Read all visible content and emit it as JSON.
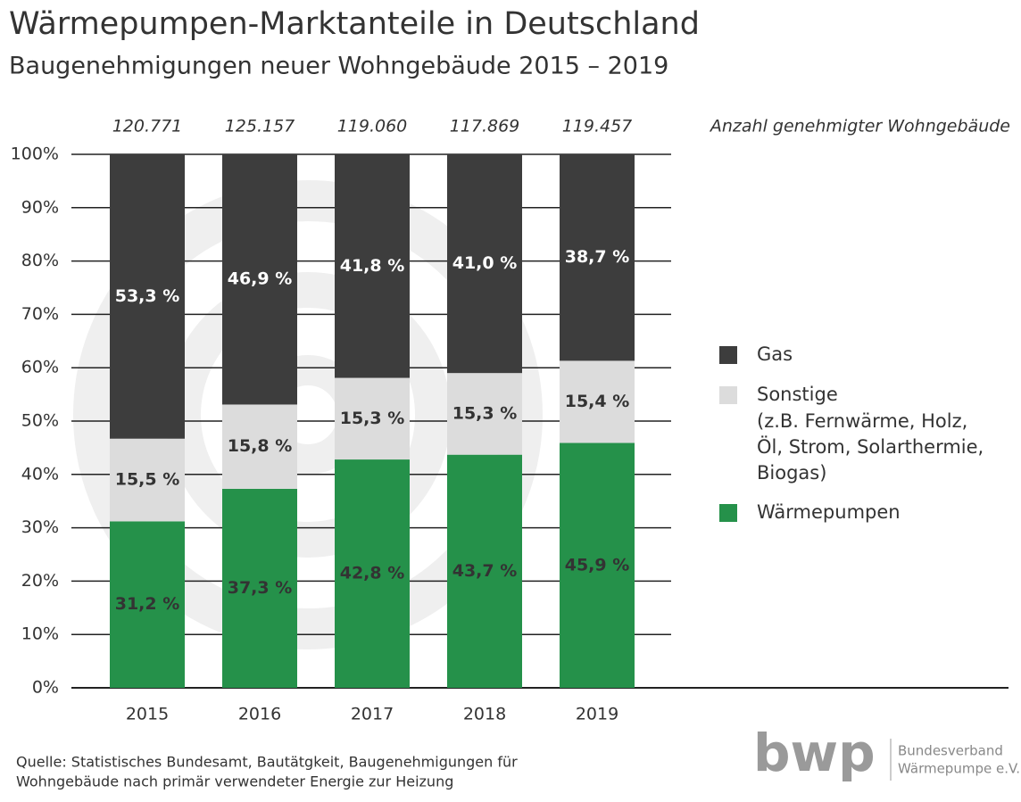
{
  "chart_data": {
    "type": "stacked-bar",
    "title": "Wärmepumpen-Marktanteile in Deutschland",
    "subtitle": "Baugenehmigungen neuer Wohngebäude 2015 – 2019",
    "categories": [
      "2015",
      "2016",
      "2017",
      "2018",
      "2019"
    ],
    "series": [
      {
        "name": "Wärmepumpen",
        "color": "#25914a",
        "label_color": "#333333",
        "values": [
          31.2,
          37.3,
          42.8,
          43.7,
          45.9
        ],
        "value_labels": [
          "31,2 %",
          "37,3 %",
          "42,8 %",
          "43,7 %",
          "45,9 %"
        ]
      },
      {
        "name": "Sonstige",
        "color": "#dcdcdc",
        "label_color": "#333333",
        "description": [
          "(z.B. Fernwärme, Holz,",
          "Öl, Strom, Solarthermie,",
          "Biogas)"
        ],
        "values": [
          15.5,
          15.8,
          15.3,
          15.3,
          15.4
        ],
        "value_labels": [
          "15,5 %",
          "15,8 %",
          "15,3 %",
          "15,3 %",
          "15,4 %"
        ]
      },
      {
        "name": "Gas",
        "color": "#3d3d3d",
        "label_color": "#ffffff",
        "values": [
          53.3,
          46.9,
          41.8,
          41.0,
          38.7
        ],
        "value_labels": [
          "53,3 %",
          "46,9 %",
          "41,8 %",
          "41,0 %",
          "38,7 %"
        ]
      }
    ],
    "permits": {
      "label": "Anzahl genehmigter Wohngebäude",
      "values": [
        120771,
        125157,
        119060,
        117869,
        119457
      ],
      "value_labels": [
        "120.771",
        "125.157",
        "119.060",
        "117.869",
        "119.457"
      ]
    },
    "ylim": [
      0,
      100
    ],
    "yticks": [
      {
        "value": 0,
        "label": "0%"
      },
      {
        "value": 10,
        "label": "10%"
      },
      {
        "value": 20,
        "label": "20%"
      },
      {
        "value": 30,
        "label": "30%"
      },
      {
        "value": 40,
        "label": "40%"
      },
      {
        "value": 50,
        "label": "50%"
      },
      {
        "value": 60,
        "label": "60%"
      },
      {
        "value": 70,
        "label": "70%"
      },
      {
        "value": 80,
        "label": "80%"
      },
      {
        "value": 90,
        "label": "90%"
      },
      {
        "value": 100,
        "label": "100%"
      }
    ],
    "grid": true,
    "source": [
      "Quelle: Statistisches Bundesamt, Bautätgkeit, Baugenehmigungen für",
      "Wohngebäude nach primär verwendeter Energie zur Heizung"
    ],
    "logo": {
      "text": "bwp",
      "lines": [
        "Bundesverband",
        "Wärmepumpe e.V."
      ]
    }
  }
}
